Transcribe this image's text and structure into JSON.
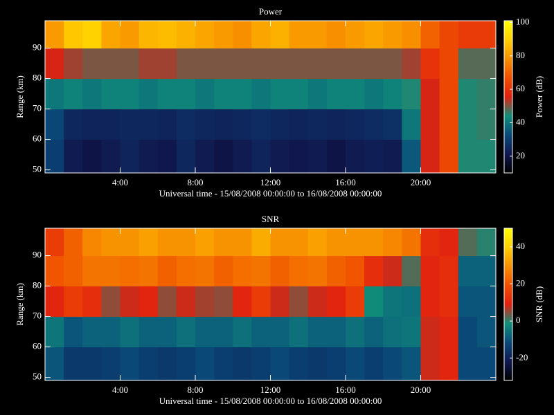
{
  "chart_data": [
    {
      "type": "heatmap",
      "title": "Power",
      "xlabel": "Universal time - 15/08/2008 00:00:00 to 16/08/2008 00:00:00",
      "ylabel": "Range (km)",
      "zlabel": "Power (dB)",
      "x": [
        0,
        1,
        2,
        3,
        4,
        5,
        6,
        7,
        8,
        9,
        10,
        11,
        12,
        13,
        14,
        15,
        16,
        17,
        18,
        19,
        20,
        21,
        22,
        23,
        24
      ],
      "y": [
        49,
        60,
        70,
        80,
        90,
        99
      ],
      "xlim": [
        0,
        24
      ],
      "ylim": [
        49,
        99
      ],
      "zlim": [
        10,
        101
      ],
      "xticks": [
        {
          "value": 4,
          "label": "4:00"
        },
        {
          "value": 8,
          "label": "8:00"
        },
        {
          "value": 12,
          "label": "12:00"
        },
        {
          "value": 16,
          "label": "16:00"
        },
        {
          "value": 20,
          "label": "20:00"
        }
      ],
      "yticks": [
        50,
        60,
        70,
        80,
        90
      ],
      "zticks": [
        20,
        40,
        60,
        80,
        100
      ],
      "colormap": [
        "#000000",
        "#101850",
        "#0a4a7a",
        "#10907a",
        "#e02010",
        "#f05000",
        "#f89000",
        "#ffd000",
        "#ffff00"
      ],
      "z": [
        [
          30,
          22,
          20,
          22,
          24,
          22,
          21,
          25,
          22,
          20,
          22,
          24,
          22,
          21,
          22,
          20,
          22,
          23,
          22,
          35,
          55,
          65,
          45,
          45
        ],
        [
          32,
          25,
          24,
          24,
          25,
          25,
          24,
          26,
          25,
          24,
          25,
          26,
          25,
          24,
          25,
          24,
          25,
          26,
          27,
          40,
          55,
          65,
          45,
          46
        ],
        [
          40,
          42,
          40,
          42,
          42,
          40,
          42,
          42,
          40,
          42,
          42,
          40,
          42,
          42,
          40,
          42,
          42,
          40,
          42,
          45,
          55,
          65,
          45,
          46
        ],
        [
          55,
          52,
          50,
          50,
          50,
          52,
          52,
          50,
          50,
          50,
          50,
          50,
          50,
          50,
          50,
          50,
          50,
          50,
          50,
          52,
          60,
          65,
          48,
          48
        ],
        [
          80,
          88,
          90,
          82,
          80,
          85,
          86,
          84,
          82,
          80,
          78,
          82,
          84,
          80,
          80,
          78,
          80,
          82,
          80,
          78,
          70,
          65,
          62,
          62
        ]
      ]
    },
    {
      "type": "heatmap",
      "title": "SNR",
      "xlabel": "Universal time - 15/08/2008 00:00:00 to 16/08/2008 00:00:00",
      "ylabel": "Range (km)",
      "zlabel": "SNR (dB)",
      "x": [
        0,
        1,
        2,
        3,
        4,
        5,
        6,
        7,
        8,
        9,
        10,
        11,
        12,
        13,
        14,
        15,
        16,
        17,
        18,
        19,
        20,
        21,
        22,
        23,
        24
      ],
      "y": [
        49,
        60,
        70,
        80,
        90,
        99
      ],
      "xlim": [
        0,
        24
      ],
      "ylim": [
        49,
        99
      ],
      "zlim": [
        -32,
        50
      ],
      "xticks": [
        {
          "value": 4,
          "label": "4:00"
        },
        {
          "value": 8,
          "label": "8:00"
        },
        {
          "value": 12,
          "label": "12:00"
        },
        {
          "value": 16,
          "label": "16:00"
        },
        {
          "value": 20,
          "label": "20:00"
        }
      ],
      "yticks": [
        50,
        60,
        70,
        80,
        90
      ],
      "zticks": [
        -20,
        0,
        20,
        40
      ],
      "colormap": [
        "#000000",
        "#101850",
        "#0a4a7a",
        "#10907a",
        "#e02010",
        "#f05000",
        "#f89000",
        "#ffd000",
        "#ffff00"
      ],
      "z": [
        [
          -10,
          -15,
          -15,
          -14,
          -12,
          -14,
          -15,
          -14,
          -12,
          -14,
          -15,
          -14,
          -12,
          -14,
          -15,
          -14,
          -12,
          -14,
          -12,
          -10,
          8,
          10,
          -12,
          -12
        ],
        [
          -5,
          -10,
          -8,
          -8,
          -6,
          -8,
          -8,
          -6,
          -8,
          -8,
          -6,
          -8,
          -8,
          -6,
          -8,
          -8,
          -6,
          -8,
          -6,
          -5,
          8,
          10,
          -12,
          -10
        ],
        [
          10,
          15,
          12,
          5,
          8,
          10,
          5,
          8,
          6,
          5,
          10,
          15,
          8,
          5,
          8,
          10,
          15,
          -2,
          -5,
          -6,
          10,
          12,
          -10,
          -10
        ],
        [
          20,
          22,
          25,
          25,
          24,
          25,
          22,
          24,
          25,
          22,
          24,
          25,
          22,
          24,
          25,
          22,
          20,
          12,
          8,
          2,
          10,
          12,
          -8,
          -8
        ],
        [
          15,
          22,
          28,
          30,
          30,
          32,
          30,
          30,
          32,
          30,
          30,
          34,
          30,
          30,
          32,
          30,
          30,
          30,
          28,
          25,
          12,
          10,
          2,
          0
        ]
      ]
    }
  ]
}
